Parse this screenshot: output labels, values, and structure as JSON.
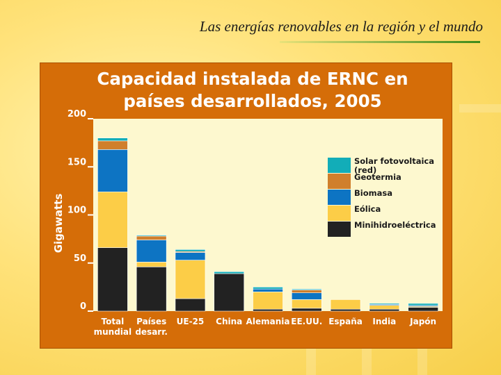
{
  "slide": {
    "title": "Las energías renovables en la región y el mundo"
  },
  "colors": {
    "panel": "#d56d08",
    "plot_background": "#fdf8cf",
    "solar": "#12adb8",
    "geotermia": "#d07f2c",
    "biomasa": "#0d74c3",
    "eolica": "#fccd47",
    "minihidro": "#222222"
  },
  "chart_data": {
    "type": "bar",
    "stacked": true,
    "title_lines": [
      "Capacidad instalada de ERNC en",
      "países desarrollados, 2005"
    ],
    "ylabel": "Gigawatts",
    "ylim": [
      0,
      200
    ],
    "yticks": [
      "0",
      "50",
      "100",
      "150",
      "200"
    ],
    "categories": [
      [
        "Total",
        "mundial"
      ],
      [
        "Países",
        "desarr."
      ],
      [
        "UE-25"
      ],
      [
        "China"
      ],
      [
        "Alemania"
      ],
      [
        "EE.UU."
      ],
      [
        "España"
      ],
      [
        "India"
      ],
      [
        "Japón"
      ]
    ],
    "legend_position": "right",
    "series": [
      {
        "name": [
          "Minihidroeléctrica"
        ],
        "color": "#222222",
        "values": [
          66,
          46,
          13,
          39,
          2,
          3,
          2,
          2,
          4
        ]
      },
      {
        "name": [
          "Eólica"
        ],
        "color": "#fccd47",
        "values": [
          58,
          5,
          40,
          0,
          18,
          9,
          10,
          4,
          1
        ]
      },
      {
        "name": [
          "Biomasa"
        ],
        "color": "#0d74c3",
        "values": [
          44,
          23,
          8,
          0,
          3,
          7,
          0,
          1,
          1
        ]
      },
      {
        "name": [
          "Geotermia"
        ],
        "color": "#d07f2c",
        "values": [
          9,
          4,
          1,
          0,
          0,
          3,
          0,
          0,
          0
        ]
      },
      {
        "name": [
          "Solar fotovoltaica",
          "(red)"
        ],
        "color": "#12adb8",
        "values": [
          3,
          1,
          2,
          2,
          2,
          1,
          0,
          1,
          2
        ]
      }
    ]
  }
}
